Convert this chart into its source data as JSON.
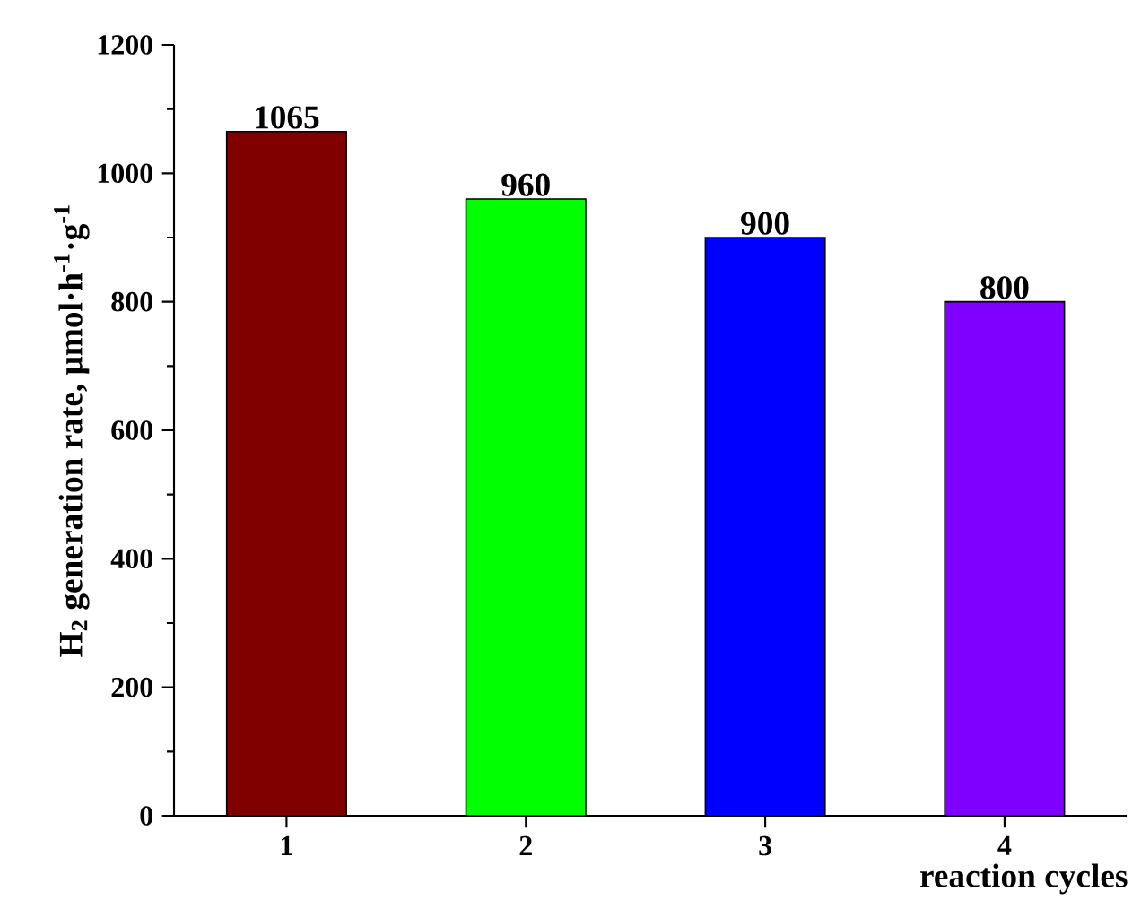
{
  "chart_data": {
    "type": "bar",
    "xlabel": "reaction cycles",
    "ylabel": "H$_{2}$ generation rate, μmol·h$^{-1}$·g$^{-1}$",
    "categories": [
      "1",
      "2",
      "3",
      "4"
    ],
    "values": [
      1065,
      960,
      900,
      800
    ],
    "colors": [
      "#800000",
      "#00ff00",
      "#0000ff",
      "#8000ff"
    ],
    "ylim": [
      0,
      1200
    ],
    "yticks": [
      0,
      200,
      400,
      600,
      800,
      1000,
      1200
    ],
    "data_labels": true,
    "grid": false
  }
}
